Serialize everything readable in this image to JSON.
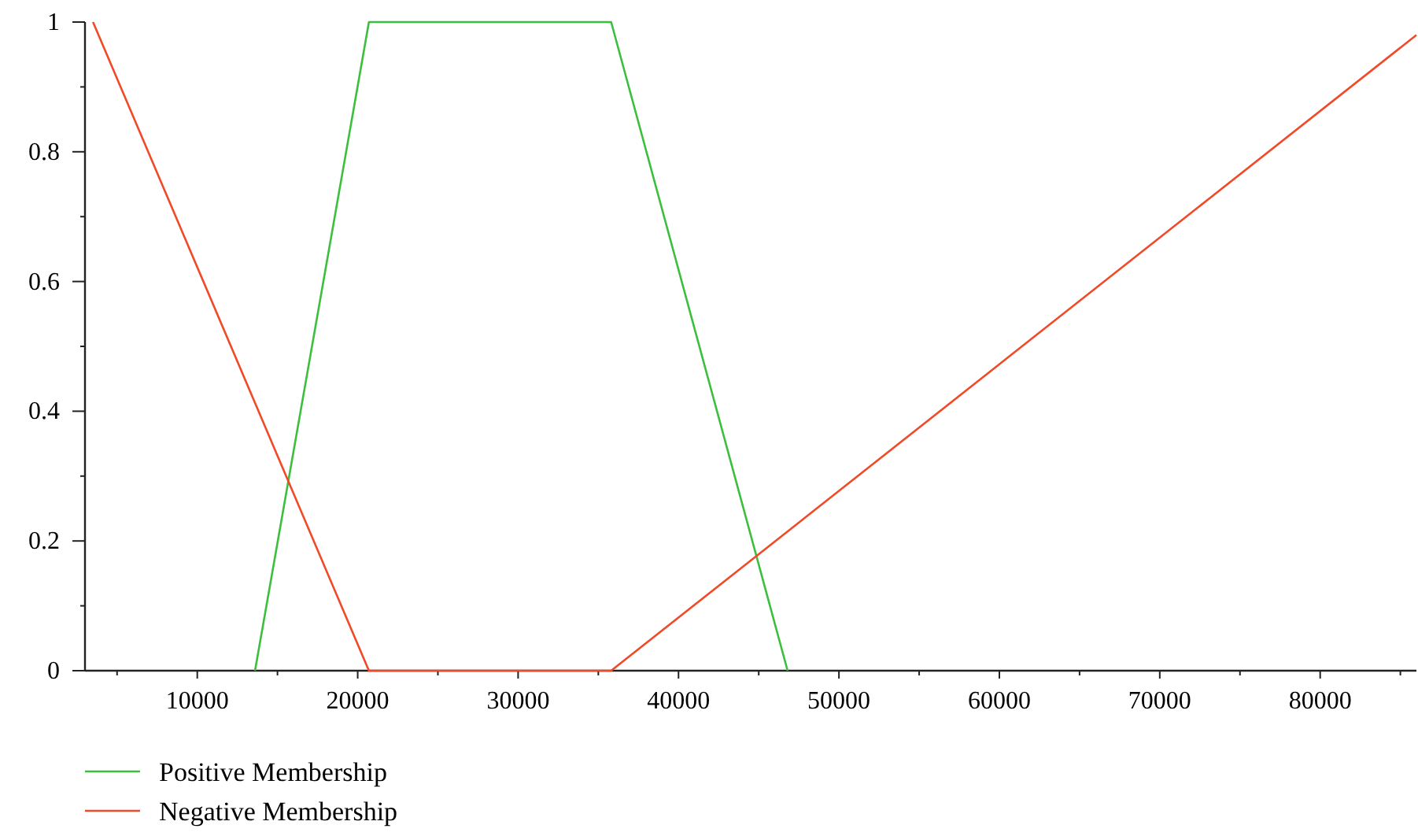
{
  "chart_data": {
    "type": "line",
    "xlim": [
      3000,
      86000
    ],
    "xticks": [
      {
        "value": 5000,
        "label": null
      },
      10000,
      {
        "value": 15000,
        "label": null
      },
      20000,
      {
        "value": 25000,
        "label": null
      },
      30000,
      {
        "value": 35000,
        "label": null
      },
      40000,
      {
        "value": 45000,
        "label": null
      },
      50000,
      {
        "value": 55000,
        "label": null
      },
      60000,
      {
        "value": 65000,
        "label": null
      },
      70000,
      {
        "value": 75000,
        "label": null
      },
      80000,
      {
        "value": 85000,
        "label": null
      }
    ],
    "ylim": [
      0,
      1
    ],
    "yticks": [
      0,
      {
        "value": 0.1,
        "label": null
      },
      0.2,
      {
        "value": 0.3,
        "label": null
      },
      0.4,
      {
        "value": 0.5,
        "label": null
      },
      0.6,
      {
        "value": 0.7,
        "label": null
      },
      0.8,
      {
        "value": 0.9,
        "label": null
      },
      1
    ],
    "grid": false,
    "legend": "bottom left",
    "marker": "none",
    "line_style": "solid",
    "series": [
      {
        "name": "Positive Membership",
        "color": "#3cbf3c",
        "x": [
          13600,
          20700,
          35800,
          46800
        ],
        "values": [
          0,
          1,
          1,
          0
        ]
      },
      {
        "name": "Negative Membership",
        "color": "#f04a28",
        "x": [
          3500,
          20700,
          35800,
          86000
        ],
        "values": [
          1,
          0,
          0,
          0.98
        ]
      }
    ]
  }
}
